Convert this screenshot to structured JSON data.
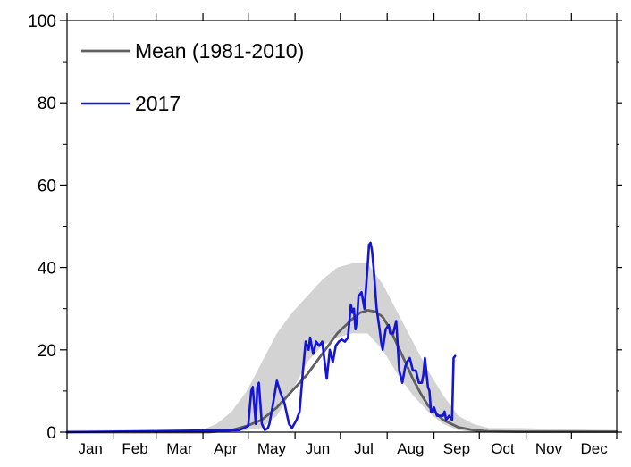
{
  "chart_data": {
    "type": "line",
    "title": "",
    "xlabel": "",
    "ylabel": "",
    "ylim": [
      0,
      100
    ],
    "y_ticks": [
      "0",
      "20",
      "40",
      "60",
      "80",
      "100"
    ],
    "x_unit": "day of year",
    "xlim": [
      1,
      365
    ],
    "x_ticks_months": [
      "Jan",
      "Feb",
      "Mar",
      "Apr",
      "May",
      "Jun",
      "Jul",
      "Aug",
      "Sep",
      "Oct",
      "Nov",
      "Dec"
    ],
    "grid": false,
    "legend_position": "top-left",
    "colors": {
      "mean": "#606060",
      "year2017": "#1515d6",
      "band": "#d3d3d3"
    },
    "band": {
      "name": "",
      "x": [
        1,
        90,
        100,
        110,
        120,
        130,
        140,
        150,
        160,
        170,
        180,
        190,
        200,
        210,
        220,
        230,
        240,
        250,
        260,
        270,
        280,
        300,
        330,
        365
      ],
      "lower": [
        0,
        0,
        0,
        0,
        0.5,
        1,
        4,
        10,
        17,
        21,
        23,
        24,
        24,
        20,
        14,
        9,
        5,
        2,
        0.5,
        0,
        0,
        0,
        0,
        0
      ],
      "upper": [
        0.5,
        0.5,
        2,
        5,
        10,
        17,
        24,
        29,
        33,
        37,
        40,
        41,
        41,
        36,
        29,
        22,
        15,
        9,
        4,
        2,
        1,
        1,
        0.7,
        0.5
      ]
    },
    "series": [
      {
        "name": "Mean (1981-2010)",
        "x": [
          1,
          95,
          110,
          120,
          130,
          140,
          150,
          160,
          170,
          180,
          190,
          195,
          200,
          205,
          210,
          215,
          220,
          225,
          230,
          235,
          240,
          250,
          260,
          270,
          280,
          300,
          330,
          365
        ],
        "values": [
          0,
          0,
          0.5,
          1.5,
          3,
          6,
          10,
          14,
          19,
          24,
          27.5,
          29,
          29.6,
          29.3,
          28,
          25,
          21,
          17,
          13,
          9.5,
          6.5,
          3,
          1.2,
          0.5,
          0.2,
          0.1,
          0.1,
          0.1
        ]
      },
      {
        "name": "2017",
        "x": [
          1,
          115,
          118,
          121,
          123,
          124,
          126,
          127,
          128,
          130,
          132,
          134,
          135,
          137,
          140,
          142,
          145,
          148,
          150,
          153,
          155,
          157,
          159,
          161,
          162,
          164,
          166,
          168,
          170,
          173,
          175,
          177,
          179,
          181,
          183,
          185,
          187,
          189,
          190,
          191,
          192,
          193,
          194,
          196,
          198,
          200,
          201,
          202,
          203,
          204,
          206,
          208,
          209,
          210,
          212,
          214,
          215,
          217,
          219,
          221,
          223,
          225,
          226,
          228,
          230,
          232,
          234,
          236,
          237,
          238,
          240,
          241,
          242,
          243,
          244,
          246,
          248,
          250,
          251,
          252,
          254,
          256,
          257,
          258
        ],
        "values": [
          0,
          0.5,
          1,
          1.5,
          10,
          11,
          2,
          11,
          12,
          2,
          0.5,
          1,
          2,
          6,
          12.5,
          10,
          7,
          2,
          1,
          3,
          5,
          14,
          22,
          20,
          23,
          19,
          22,
          21,
          22,
          13,
          20,
          17,
          21,
          22,
          22.5,
          22,
          23,
          31,
          29,
          30,
          25,
          27,
          33,
          34,
          30,
          40,
          45.5,
          46,
          44,
          40,
          30,
          25,
          22,
          20,
          25,
          26,
          24,
          24,
          27,
          15,
          12,
          16,
          17,
          18,
          15,
          15,
          12,
          12,
          14,
          18,
          11,
          10,
          5,
          5,
          6,
          4,
          4,
          4,
          5,
          3,
          4,
          3,
          18,
          18.5
        ]
      }
    ]
  }
}
